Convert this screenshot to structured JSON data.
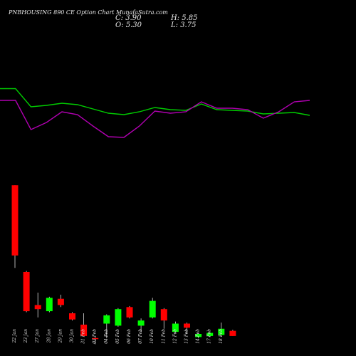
{
  "header": {
    "title": "PNBHOUSING 890  CE Option  Chart MunafaSutra.com",
    "close": "C: 3.90",
    "open": "O: 5.30",
    "high": "H: 5.85",
    "low": "L: 3.75"
  },
  "colors": {
    "background": "#000000",
    "up": "#00ff00",
    "down": "#ff0000",
    "green_line": "#00cc00",
    "purple_line": "#b000b0",
    "wick": "#dddddd"
  },
  "chart_data": {
    "type": "candlestick",
    "dates": [
      "22 Jan",
      "23 Jan",
      "27 Jan",
      "28 Jan",
      "29 Jan",
      "30 Jan",
      "31 Feb",
      "03 Feb",
      "04 Feb",
      "05 Feb",
      "06 Feb",
      "07 Feb",
      "10 Feb",
      "11 Feb",
      "12 Feb",
      "13 Feb",
      "14 Feb",
      "17 Feb",
      "18 Feb"
    ],
    "candles": [
      {
        "open": 62.0,
        "close": 28.0,
        "high": 62.0,
        "low": 22.0
      },
      {
        "open": 20.0,
        "close": 1.0,
        "high": 20.5,
        "low": 0.5
      },
      {
        "open": 4.0,
        "close": 2.0,
        "high": 10.0,
        "low": -2.0
      },
      {
        "open": 1.0,
        "close": 7.5,
        "high": 8.0,
        "low": 0.5
      },
      {
        "open": 7.0,
        "close": 4.0,
        "high": 9.0,
        "low": 3.0
      },
      {
        "open": 0.0,
        "close": -3.0,
        "high": 0.5,
        "low": -3.5
      },
      {
        "open": -5.5,
        "close": -11.0,
        "high": 0.0,
        "low": -11.0
      },
      {
        "open": -12.0,
        "close": -12.5,
        "high": -11.5,
        "low": -15.0
      },
      {
        "open": -5.0,
        "close": -1.0,
        "high": -0.5,
        "low": -12.0
      },
      {
        "open": -6.0,
        "close": 2.0,
        "high": 2.5,
        "low": -6.5
      },
      {
        "open": 3.0,
        "close": -2.0,
        "high": 3.5,
        "low": -2.5
      },
      {
        "open": -6.0,
        "close": -3.5,
        "high": -2.5,
        "low": -9.0
      },
      {
        "open": -2.0,
        "close": 6.0,
        "high": 7.5,
        "low": -2.5
      },
      {
        "open": 2.0,
        "close": -3.5,
        "high": 2.5,
        "low": -7.5
      },
      {
        "open": -9.0,
        "close": -5.0,
        "high": -4.0,
        "low": -9.5
      },
      {
        "open": -5.0,
        "close": -7.0,
        "high": -4.5,
        "low": -10.0
      },
      {
        "open": -11.5,
        "close": -10.0,
        "high": -9.5,
        "low": -12.0
      },
      {
        "open": -11.0,
        "close": -9.5,
        "high": -9.0,
        "low": -11.5
      },
      {
        "open": -10.5,
        "close": -7.5,
        "high": -4.5,
        "low": -11.0
      }
    ],
    "extra_candle_last": {
      "open": -8.5,
      "close": -11.0,
      "high": -8.0,
      "low": -11.0
    },
    "green_line": [
      120.5,
      120.5,
      95,
      97,
      100,
      98,
      92,
      86,
      84,
      88,
      94,
      91,
      90,
      99,
      91,
      90,
      89,
      85,
      86,
      87,
      83
    ],
    "purple_line": [
      104,
      104,
      63,
      73,
      88,
      84,
      68,
      53,
      52,
      68,
      89,
      86,
      88,
      102,
      93,
      93,
      91,
      79,
      88,
      102,
      104
    ]
  }
}
